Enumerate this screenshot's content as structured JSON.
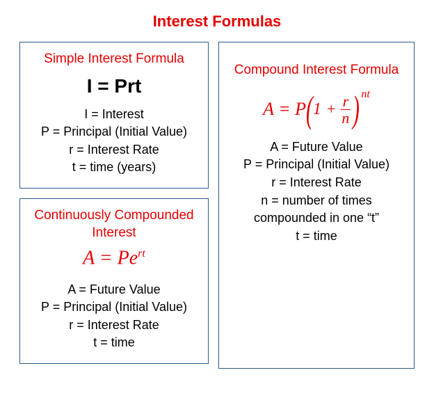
{
  "title": "Interest Formulas",
  "colors": {
    "accent": "#e60000",
    "border": "#2a5a8a",
    "text": "#000000",
    "background": "#ffffff"
  },
  "simple": {
    "title": "Simple Interest Formula",
    "formula": "I = Prt",
    "defs": [
      "I = Interest",
      "P = Principal (Initial Value)",
      "r = Interest Rate",
      "t = time (years)"
    ]
  },
  "continuous": {
    "title": "Continuously Compounded Interest",
    "formula_lhs": "A = Pe",
    "formula_exp": "rt",
    "defs": [
      "A = Future Value",
      "P = Principal (Initial Value)",
      "r = Interest Rate",
      "t = time"
    ]
  },
  "compound": {
    "title": "Compound Interest Formula",
    "formula": {
      "lhs": "A = P",
      "inner_one": "1",
      "inner_plus": "+",
      "frac_num": "r",
      "frac_den": "n",
      "exp": "nt"
    },
    "defs": [
      "A = Future  Value",
      "P = Principal (Initial Value)",
      "r = Interest Rate",
      "n = number of times compounded in one “t”",
      "t = time"
    ]
  }
}
